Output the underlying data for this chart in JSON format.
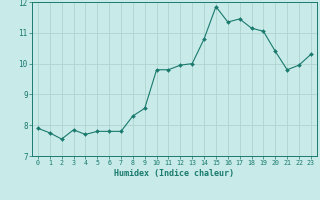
{
  "x": [
    0,
    1,
    2,
    3,
    4,
    5,
    6,
    7,
    8,
    9,
    10,
    11,
    12,
    13,
    14,
    15,
    16,
    17,
    18,
    19,
    20,
    21,
    22,
    23
  ],
  "y": [
    7.9,
    7.75,
    7.55,
    7.85,
    7.7,
    7.8,
    7.8,
    7.8,
    8.3,
    8.55,
    9.8,
    9.8,
    9.95,
    10.0,
    10.8,
    11.85,
    11.35,
    11.45,
    11.15,
    11.05,
    10.4,
    9.8,
    9.95,
    10.3
  ],
  "line_color": "#1a7a6e",
  "marker_color": "#1a7a6e",
  "bg_color": "#c8eae8",
  "grid_color": "#b0d4d0",
  "xlabel": "Humidex (Indice chaleur)",
  "ylim": [
    7,
    12
  ],
  "xlim": [
    -0.5,
    23.5
  ],
  "yticks": [
    7,
    8,
    9,
    10,
    11,
    12
  ],
  "xticks": [
    0,
    1,
    2,
    3,
    4,
    5,
    6,
    7,
    8,
    9,
    10,
    11,
    12,
    13,
    14,
    15,
    16,
    17,
    18,
    19,
    20,
    21,
    22,
    23
  ]
}
